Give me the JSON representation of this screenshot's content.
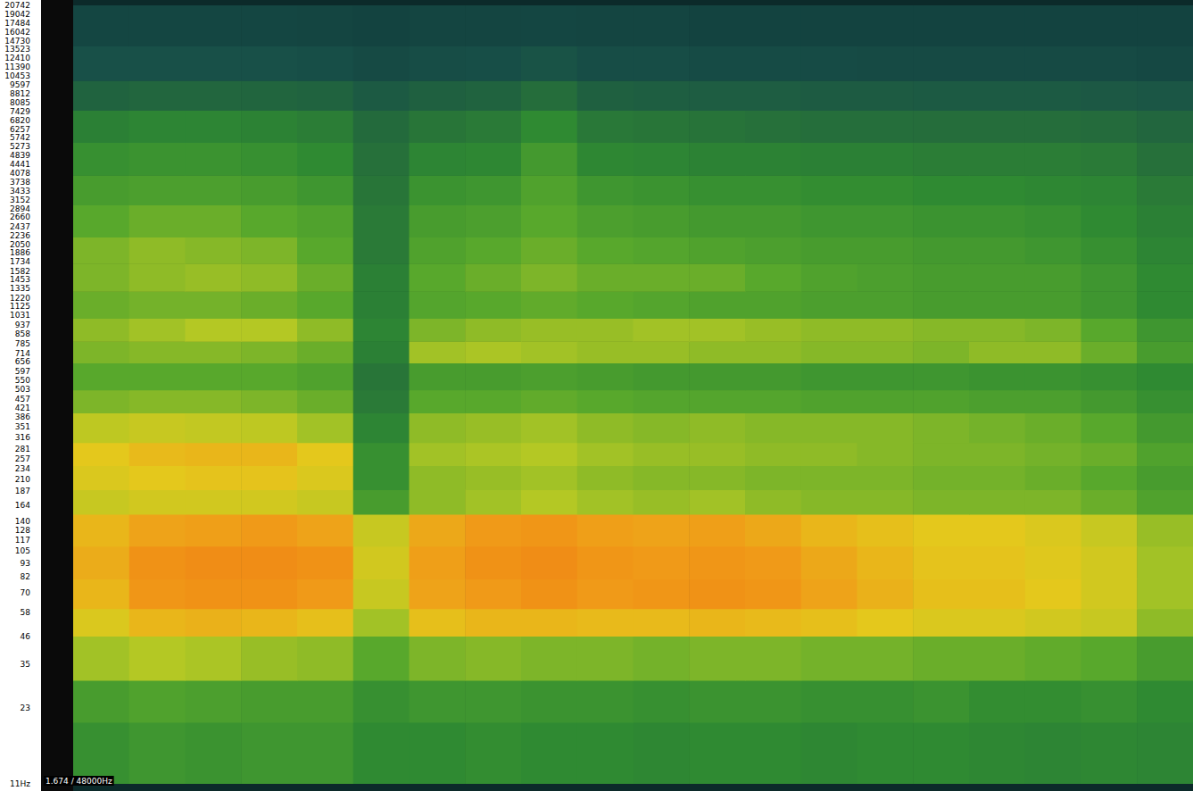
{
  "chart_data": {
    "type": "heatmap",
    "annotation": "1.674 / 48000Hz",
    "log": "y",
    "grid": false,
    "tick_labels": "y",
    "xlim": [
      0,
      1.674
    ],
    "ylim": [
      11,
      20742
    ],
    "yticks": [
      {
        "value": 11,
        "label": "11Hz"
      },
      23,
      35,
      46,
      58,
      70,
      82,
      93,
      105,
      117,
      128,
      140,
      164,
      187,
      210,
      234,
      257,
      281,
      316,
      351,
      386,
      421,
      457,
      503,
      550,
      597,
      656,
      714,
      785,
      858,
      937,
      1031,
      1125,
      1220,
      1335,
      1453,
      1582,
      1734,
      1886,
      2050,
      2236,
      2437,
      2660,
      2894,
      3152,
      3433,
      3738,
      4078,
      4441,
      4839,
      5273,
      5742,
      6257,
      6820,
      7429,
      8085,
      8812,
      9597,
      10453,
      11390,
      12410,
      13523,
      14730,
      16042,
      17484,
      19042,
      20742
    ],
    "value_range": [
      -100,
      0
    ],
    "x_bins": [
      0,
      0.0837,
      0.1674,
      0.2511,
      0.3348,
      0.4185,
      0.5022,
      0.5859,
      0.6696,
      0.7533,
      0.837,
      0.9207,
      1.0044,
      1.0881,
      1.1718,
      1.2555,
      1.3392,
      1.4229,
      1.5066,
      1.5903,
      1.674
    ],
    "y_bins": [
      11,
      20,
      30,
      46,
      60,
      80,
      110,
      150,
      190,
      240,
      300,
      400,
      500,
      650,
      800,
      1000,
      1300,
      1700,
      2200,
      3000,
      4000,
      5500,
      7500,
      10000,
      14000,
      20742
    ],
    "values": [
      [
        -48,
        -46,
        -47,
        -46,
        -46,
        -50,
        -50,
        -49,
        -50,
        -50,
        -51,
        -50,
        -50,
        -51,
        -50,
        -50,
        -51,
        -52,
        -51,
        -52
      ],
      [
        -44,
        -42,
        -43,
        -44,
        -44,
        -48,
        -46,
        -46,
        -47,
        -47,
        -48,
        -47,
        -47,
        -48,
        -48,
        -47,
        -49,
        -49,
        -48,
        -50
      ],
      [
        -32,
        -30,
        -31,
        -33,
        -34,
        -40,
        -36,
        -35,
        -36,
        -36,
        -37,
        -36,
        -36,
        -37,
        -37,
        -38,
        -38,
        -39,
        -40,
        -44
      ],
      [
        -22,
        -16,
        -15,
        -16,
        -18,
        -32,
        -18,
        -16,
        -16,
        -17,
        -17,
        -16,
        -17,
        -18,
        -20,
        -22,
        -22,
        -24,
        -26,
        -34
      ],
      [
        -16,
        -9,
        -8,
        -8,
        -10,
        -26,
        -12,
        -10,
        -8,
        -10,
        -9,
        -8,
        -9,
        -12,
        -15,
        -18,
        -18,
        -20,
        -24,
        -32
      ],
      [
        -14,
        -8,
        -7,
        -7,
        -8,
        -24,
        -11,
        -8,
        -7,
        -9,
        -10,
        -9,
        -10,
        -13,
        -16,
        -19,
        -19,
        -21,
        -24,
        -32
      ],
      [
        -16,
        -12,
        -11,
        -10,
        -12,
        -26,
        -13,
        -10,
        -9,
        -11,
        -12,
        -11,
        -13,
        -16,
        -18,
        -20,
        -20,
        -22,
        -26,
        -33
      ],
      [
        -26,
        -24,
        -24,
        -24,
        -26,
        -44,
        -34,
        -32,
        -30,
        -32,
        -33,
        -32,
        -34,
        -35,
        -35,
        -36,
        -36,
        -36,
        -38,
        -42
      ],
      [
        -22,
        -20,
        -19,
        -19,
        -22,
        -48,
        -34,
        -33,
        -32,
        -34,
        -35,
        -35,
        -36,
        -36,
        -36,
        -37,
        -37,
        -38,
        -40,
        -44
      ],
      [
        -20,
        -17,
        -16,
        -16,
        -20,
        -48,
        -32,
        -31,
        -30,
        -32,
        -33,
        -33,
        -34,
        -34,
        -35,
        -36,
        -36,
        -37,
        -38,
        -42
      ],
      [
        -28,
        -26,
        -27,
        -28,
        -32,
        -52,
        -34,
        -33,
        -32,
        -34,
        -35,
        -34,
        -35,
        -35,
        -35,
        -36,
        -37,
        -38,
        -40,
        -45
      ],
      [
        -36,
        -35,
        -35,
        -36,
        -38,
        -56,
        -40,
        -40,
        -39,
        -40,
        -41,
        -41,
        -41,
        -42,
        -42,
        -42,
        -43,
        -43,
        -45,
        -48
      ],
      [
        -40,
        -40,
        -40,
        -40,
        -42,
        -58,
        -44,
        -44,
        -43,
        -44,
        -45,
        -45,
        -45,
        -46,
        -46,
        -46,
        -47,
        -47,
        -48,
        -50
      ],
      [
        -36,
        -35,
        -35,
        -36,
        -38,
        -54,
        -32,
        -31,
        -32,
        -33,
        -33,
        -34,
        -34,
        -35,
        -35,
        -36,
        -34,
        -34,
        -38,
        -44
      ],
      [
        -34,
        -32,
        -30,
        -30,
        -34,
        -52,
        -36,
        -34,
        -33,
        -33,
        -32,
        -32,
        -33,
        -34,
        -34,
        -35,
        -35,
        -36,
        -40,
        -46
      ],
      [
        -38,
        -37,
        -37,
        -38,
        -40,
        -54,
        -41,
        -40,
        -39,
        -40,
        -41,
        -42,
        -42,
        -43,
        -43,
        -44,
        -44,
        -44,
        -46,
        -50
      ],
      [
        -36,
        -34,
        -33,
        -34,
        -38,
        -54,
        -40,
        -38,
        -36,
        -38,
        -38,
        -38,
        -40,
        -42,
        -43,
        -44,
        -44,
        -44,
        -46,
        -50
      ],
      [
        -36,
        -34,
        -35,
        -36,
        -40,
        -56,
        -42,
        -40,
        -38,
        -40,
        -41,
        -42,
        -43,
        -44,
        -44,
        -45,
        -45,
        -46,
        -48,
        -52
      ],
      [
        -40,
        -38,
        -38,
        -40,
        -42,
        -56,
        -44,
        -43,
        -40,
        -43,
        -44,
        -45,
        -45,
        -46,
        -46,
        -47,
        -47,
        -48,
        -50,
        -54
      ],
      [
        -44,
        -43,
        -43,
        -44,
        -46,
        -58,
        -47,
        -46,
        -42,
        -46,
        -47,
        -48,
        -48,
        -49,
        -49,
        -50,
        -50,
        -51,
        -52,
        -56
      ],
      [
        -48,
        -47,
        -47,
        -48,
        -50,
        -60,
        -52,
        -51,
        -45,
        -51,
        -52,
        -53,
        -53,
        -54,
        -54,
        -55,
        -55,
        -55,
        -56,
        -60
      ],
      [
        -54,
        -52,
        -52,
        -53,
        -55,
        -64,
        -58,
        -56,
        -50,
        -57,
        -58,
        -59,
        -60,
        -61,
        -61,
        -62,
        -62,
        -62,
        -63,
        -66
      ],
      [
        -68,
        -66,
        -66,
        -67,
        -68,
        -74,
        -70,
        -68,
        -62,
        -70,
        -71,
        -72,
        -72,
        -73,
        -73,
        -74,
        -74,
        -74,
        -75,
        -76
      ],
      [
        -80,
        -80,
        -80,
        -80,
        -81,
        -84,
        -82,
        -81,
        -78,
        -82,
        -82,
        -83,
        -83,
        -83,
        -84,
        -84,
        -84,
        -84,
        -84,
        -85
      ],
      [
        -86,
        -86,
        -86,
        -86,
        -87,
        -88,
        -87,
        -87,
        -86,
        -87,
        -87,
        -88,
        -88,
        -88,
        -88,
        -88,
        -88,
        -88,
        -88,
        -88
      ]
    ]
  }
}
